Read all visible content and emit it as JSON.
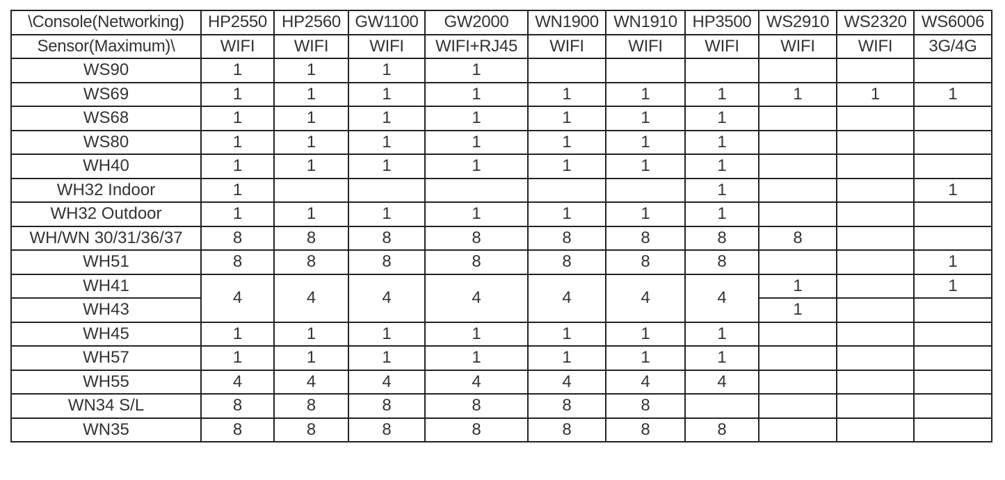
{
  "header": {
    "corner_top": "\\Console(Networking)",
    "corner_bottom": "Sensor(Maximum)\\",
    "consoles": [
      "HP2550",
      "HP2560",
      "GW1100",
      "GW2000",
      "WN1900",
      "WN1910",
      "HP3500",
      "WS2910",
      "WS2320",
      "WS6006"
    ],
    "networking": [
      "WIFI",
      "WIFI",
      "WIFI",
      "WIFI+RJ45",
      "WIFI",
      "WIFI",
      "WIFI",
      "WIFI",
      "WIFI",
      "3G/4G"
    ]
  },
  "rows": [
    {
      "sensor": "WS90",
      "cells": [
        "1",
        "1",
        "1",
        "1",
        "",
        "",
        "",
        "",
        "",
        ""
      ]
    },
    {
      "sensor": "WS69",
      "cells": [
        "1",
        "1",
        "1",
        "1",
        "1",
        "1",
        "1",
        "1",
        "1",
        "1"
      ]
    },
    {
      "sensor": "WS68",
      "cells": [
        "1",
        "1",
        "1",
        "1",
        "1",
        "1",
        "1",
        "",
        "",
        ""
      ]
    },
    {
      "sensor": "WS80",
      "cells": [
        "1",
        "1",
        "1",
        "1",
        "1",
        "1",
        "1",
        "",
        "",
        ""
      ]
    },
    {
      "sensor": "WH40",
      "cells": [
        "1",
        "1",
        "1",
        "1",
        "1",
        "1",
        "1",
        "",
        "",
        ""
      ]
    },
    {
      "sensor": "WH32 Indoor",
      "cells": [
        "1",
        "",
        "",
        "",
        "",
        "",
        "1",
        "",
        "",
        "1"
      ]
    },
    {
      "sensor": "WH32 Outdoor",
      "cells": [
        "1",
        "1",
        "1",
        "1",
        "1",
        "1",
        "1",
        "",
        "",
        ""
      ]
    },
    {
      "sensor": "WH/WN 30/31/36/37",
      "cells": [
        "8",
        "8",
        "8",
        "8",
        "8",
        "8",
        "8",
        "8",
        "",
        ""
      ]
    },
    {
      "sensor": "WH51",
      "cells": [
        "8",
        "8",
        "8",
        "8",
        "8",
        "8",
        "8",
        "",
        "",
        "1"
      ]
    },
    {
      "sensor": "WH41",
      "cells": [
        {
          "v": "4",
          "rowspan": 2
        },
        {
          "v": "4",
          "rowspan": 2
        },
        {
          "v": "4",
          "rowspan": 2
        },
        {
          "v": "4",
          "rowspan": 2
        },
        {
          "v": "4",
          "rowspan": 2
        },
        {
          "v": "4",
          "rowspan": 2
        },
        {
          "v": "4",
          "rowspan": 2
        },
        "1",
        "",
        "1"
      ]
    },
    {
      "sensor": "WH43",
      "cells": [
        "1",
        "",
        ""
      ]
    },
    {
      "sensor": "WH45",
      "cells": [
        "1",
        "1",
        "1",
        "1",
        "1",
        "1",
        "1",
        "",
        "",
        ""
      ]
    },
    {
      "sensor": "WH57",
      "cells": [
        "1",
        "1",
        "1",
        "1",
        "1",
        "1",
        "1",
        "",
        "",
        ""
      ]
    },
    {
      "sensor": "WH55",
      "cells": [
        "4",
        "4",
        "4",
        "4",
        "4",
        "4",
        "4",
        "",
        "",
        ""
      ]
    },
    {
      "sensor": "WN34 S/L",
      "cells": [
        "8",
        "8",
        "8",
        "8",
        "8",
        "8",
        "",
        "",
        "",
        ""
      ]
    },
    {
      "sensor": "WN35",
      "cells": [
        "8",
        "8",
        "8",
        "8",
        "8",
        "8",
        "8",
        "",
        "",
        ""
      ]
    }
  ]
}
